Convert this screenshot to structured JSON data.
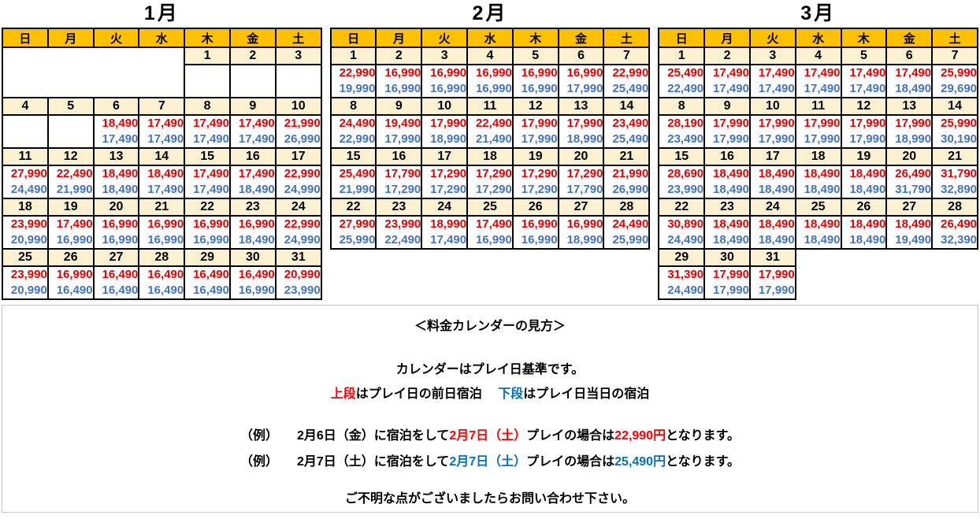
{
  "colors": {
    "header_orange": "#ffc000",
    "day_bg": "#fbf0d0",
    "price_red": "#e60000",
    "price_blue": "#4472c4",
    "accent_red": "#ff0000",
    "accent_blue": "#0070c0"
  },
  "weekday_headers": [
    "日",
    "月",
    "火",
    "水",
    "木",
    "金",
    "土"
  ],
  "calendars": [
    {
      "title": "1月",
      "weeks": [
        [
          null,
          null,
          null,
          null,
          {
            "d": "1",
            "t": "",
            "b": ""
          },
          {
            "d": "2",
            "t": "",
            "b": ""
          },
          {
            "d": "3",
            "t": "",
            "b": ""
          }
        ],
        [
          {
            "d": "4",
            "t": "",
            "b": ""
          },
          {
            "d": "5",
            "t": "",
            "b": ""
          },
          {
            "d": "6",
            "t": "18,490",
            "b": "17,490"
          },
          {
            "d": "7",
            "t": "17,490",
            "b": "17,490"
          },
          {
            "d": "8",
            "t": "17,490",
            "b": "17,490"
          },
          {
            "d": "9",
            "t": "17,490",
            "b": "17,490"
          },
          {
            "d": "10",
            "t": "21,990",
            "b": "26,990"
          }
        ],
        [
          {
            "d": "11",
            "t": "27,990",
            "b": "24,490"
          },
          {
            "d": "12",
            "t": "22,490",
            "b": "21,990"
          },
          {
            "d": "13",
            "t": "18,490",
            "b": "18,490"
          },
          {
            "d": "14",
            "t": "18,490",
            "b": "17,490"
          },
          {
            "d": "15",
            "t": "17,490",
            "b": "17,490"
          },
          {
            "d": "16",
            "t": "17,490",
            "b": "18,490"
          },
          {
            "d": "17",
            "t": "22,990",
            "b": "24,990"
          }
        ],
        [
          {
            "d": "18",
            "t": "23,990",
            "b": "20,990"
          },
          {
            "d": "19",
            "t": "17,490",
            "b": "16,990"
          },
          {
            "d": "20",
            "t": "16,990",
            "b": "16,990"
          },
          {
            "d": "21",
            "t": "16,990",
            "b": "16,990"
          },
          {
            "d": "22",
            "t": "16,990",
            "b": "16,990"
          },
          {
            "d": "23",
            "t": "16,990",
            "b": "18,490"
          },
          {
            "d": "24",
            "t": "22,990",
            "b": "24,990"
          }
        ],
        [
          {
            "d": "25",
            "t": "23,990",
            "b": "20,990"
          },
          {
            "d": "26",
            "t": "16,990",
            "b": "16,490"
          },
          {
            "d": "27",
            "t": "16,490",
            "b": "16,490"
          },
          {
            "d": "28",
            "t": "16,490",
            "b": "16,490"
          },
          {
            "d": "29",
            "t": "16,490",
            "b": "16,490"
          },
          {
            "d": "30",
            "t": "16,490",
            "b": "16,990"
          },
          {
            "d": "31",
            "t": "20,990",
            "b": "23,990"
          }
        ]
      ]
    },
    {
      "title": "2月",
      "weeks": [
        [
          {
            "d": "1",
            "t": "22,990",
            "b": "19,990"
          },
          {
            "d": "2",
            "t": "16,990",
            "b": "16,990"
          },
          {
            "d": "3",
            "t": "16,990",
            "b": "16,990"
          },
          {
            "d": "4",
            "t": "16,990",
            "b": "16,990"
          },
          {
            "d": "5",
            "t": "16,990",
            "b": "16,990"
          },
          {
            "d": "6",
            "t": "16,990",
            "b": "17,990"
          },
          {
            "d": "7",
            "t": "22,990",
            "b": "25,490"
          }
        ],
        [
          {
            "d": "8",
            "t": "24,490",
            "b": "22,990"
          },
          {
            "d": "9",
            "t": "19,490",
            "b": "17,990"
          },
          {
            "d": "10",
            "t": "17,990",
            "b": "18,990"
          },
          {
            "d": "11",
            "t": "22,490",
            "b": "21,490"
          },
          {
            "d": "12",
            "t": "17,990",
            "b": "17,990"
          },
          {
            "d": "13",
            "t": "17,990",
            "b": "18,990"
          },
          {
            "d": "14",
            "t": "23,490",
            "b": "25,490"
          }
        ],
        [
          {
            "d": "15",
            "t": "25,490",
            "b": "21,990"
          },
          {
            "d": "16",
            "t": "17,790",
            "b": "17,290"
          },
          {
            "d": "17",
            "t": "17,290",
            "b": "17,290"
          },
          {
            "d": "18",
            "t": "17,290",
            "b": "17,290"
          },
          {
            "d": "19",
            "t": "17,290",
            "b": "17,290"
          },
          {
            "d": "20",
            "t": "17,290",
            "b": "17,790"
          },
          {
            "d": "21",
            "t": "21,990",
            "b": "26,990"
          }
        ],
        [
          {
            "d": "22",
            "t": "27,990",
            "b": "25,990"
          },
          {
            "d": "23",
            "t": "23,990",
            "b": "22,490"
          },
          {
            "d": "24",
            "t": "18,990",
            "b": "17,490"
          },
          {
            "d": "25",
            "t": "17,490",
            "b": "16,990"
          },
          {
            "d": "26",
            "t": "16,990",
            "b": "16,990"
          },
          {
            "d": "27",
            "t": "16,990",
            "b": "18,990"
          },
          {
            "d": "28",
            "t": "24,490",
            "b": "25,990"
          }
        ]
      ]
    },
    {
      "title": "3月",
      "weeks": [
        [
          {
            "d": "1",
            "t": "25,490",
            "b": "22,490"
          },
          {
            "d": "2",
            "t": "17,490",
            "b": "17,490"
          },
          {
            "d": "3",
            "t": "17,490",
            "b": "17,490"
          },
          {
            "d": "4",
            "t": "17,490",
            "b": "17,490"
          },
          {
            "d": "5",
            "t": "17,490",
            "b": "17,490"
          },
          {
            "d": "6",
            "t": "17,490",
            "b": "18,490"
          },
          {
            "d": "7",
            "t": "25,990",
            "b": "29,690"
          }
        ],
        [
          {
            "d": "8",
            "t": "28,190",
            "b": "23,490"
          },
          {
            "d": "9",
            "t": "17,990",
            "b": "17,990"
          },
          {
            "d": "10",
            "t": "17,990",
            "b": "17,990"
          },
          {
            "d": "11",
            "t": "17,990",
            "b": "17,990"
          },
          {
            "d": "12",
            "t": "17,990",
            "b": "17,990"
          },
          {
            "d": "13",
            "t": "17,990",
            "b": "18,990"
          },
          {
            "d": "14",
            "t": "25,990",
            "b": "30,190"
          }
        ],
        [
          {
            "d": "15",
            "t": "28,690",
            "b": "23,990"
          },
          {
            "d": "16",
            "t": "18,490",
            "b": "18,490"
          },
          {
            "d": "17",
            "t": "18,490",
            "b": "18,490"
          },
          {
            "d": "18",
            "t": "18,490",
            "b": "18,490"
          },
          {
            "d": "19",
            "t": "18,490",
            "b": "18,490"
          },
          {
            "d": "20",
            "t": "26,490",
            "b": "31,790"
          },
          {
            "d": "21",
            "t": "31,790",
            "b": "32,890"
          }
        ],
        [
          {
            "d": "22",
            "t": "30,890",
            "b": "24,490"
          },
          {
            "d": "23",
            "t": "18,490",
            "b": "18,490"
          },
          {
            "d": "24",
            "t": "18,490",
            "b": "18,490"
          },
          {
            "d": "25",
            "t": "18,490",
            "b": "18,490"
          },
          {
            "d": "26",
            "t": "18,490",
            "b": "18,490"
          },
          {
            "d": "27",
            "t": "18,490",
            "b": "19,490"
          },
          {
            "d": "28",
            "t": "26,490",
            "b": "32,390"
          }
        ],
        [
          {
            "d": "29",
            "t": "31,390",
            "b": "24,490"
          },
          {
            "d": "30",
            "t": "17,990",
            "b": "17,990"
          },
          {
            "d": "31",
            "t": "17,990",
            "b": "17,990"
          },
          null,
          null,
          null,
          null
        ]
      ]
    }
  ],
  "legend": {
    "heading": "＜料金カレンダーの見方＞",
    "intro": "カレンダーはプレイ日基準です。",
    "row_meaning": [
      {
        "c": "red",
        "t": "上段"
      },
      {
        "c": "black",
        "t": "はプレイ日の前日宿泊　 "
      },
      {
        "c": "blue",
        "t": "下段"
      },
      {
        "c": "black",
        "t": "はプレイ日当日の宿泊"
      }
    ],
    "examples": [
      [
        {
          "c": "black",
          "t": "（例）　　2月6日（金）に宿泊をして"
        },
        {
          "c": "red",
          "t": "2月7日（土）"
        },
        {
          "c": "black",
          "t": "プレイの場合は"
        },
        {
          "c": "red",
          "t": "22,990円"
        },
        {
          "c": "black",
          "t": "となります。"
        }
      ],
      [
        {
          "c": "black",
          "t": "（例）　　2月7日（土）に宿泊をして"
        },
        {
          "c": "blue",
          "t": "2月7日（土）"
        },
        {
          "c": "black",
          "t": "プレイの場合は"
        },
        {
          "c": "blue",
          "t": "25,490円"
        },
        {
          "c": "black",
          "t": "となります。"
        }
      ]
    ],
    "footer": "ご不明な点がございましたらお問い合わせ下さい。"
  }
}
